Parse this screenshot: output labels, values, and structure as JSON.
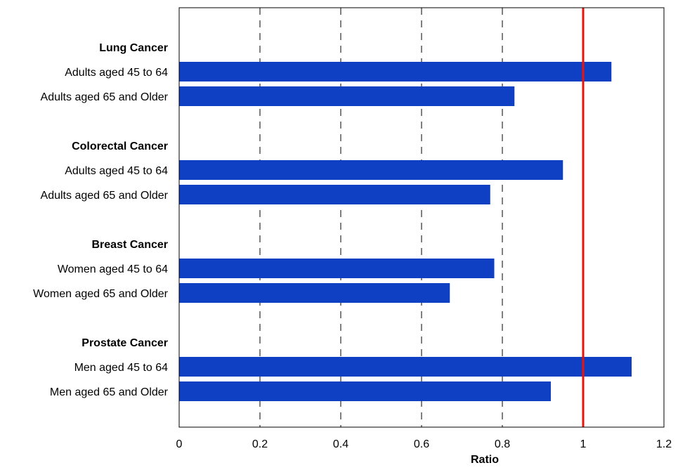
{
  "chart_data": {
    "type": "bar",
    "orientation": "horizontal",
    "xlabel": "Ratio",
    "xlim": [
      0,
      1.2
    ],
    "xticks": [
      "0",
      "0.2",
      "0.4",
      "0.6",
      "0.8",
      "1",
      "1.2"
    ],
    "grid": "dashed vertical",
    "reference_line": {
      "x": 1,
      "color": "#e8140c"
    },
    "bar_color": "#0f3fc3",
    "groups": [
      {
        "title": "Lung Cancer",
        "bars": [
          {
            "label": "Adults aged 45 to 64",
            "value": 1.07
          },
          {
            "label": "Adults aged 65 and Older",
            "value": 0.83
          }
        ]
      },
      {
        "title": "Colorectal Cancer",
        "bars": [
          {
            "label": "Adults aged 45 to 64",
            "value": 0.95
          },
          {
            "label": "Adults aged 65 and Older",
            "value": 0.77
          }
        ]
      },
      {
        "title": "Breast Cancer",
        "bars": [
          {
            "label": "Women aged 45 to 64",
            "value": 0.78
          },
          {
            "label": "Women aged 65 and Older",
            "value": 0.67
          }
        ]
      },
      {
        "title": "Prostate Cancer",
        "bars": [
          {
            "label": "Men aged 45 to 64",
            "value": 1.12
          },
          {
            "label": "Men aged 65 and Older",
            "value": 0.92
          }
        ]
      }
    ]
  }
}
